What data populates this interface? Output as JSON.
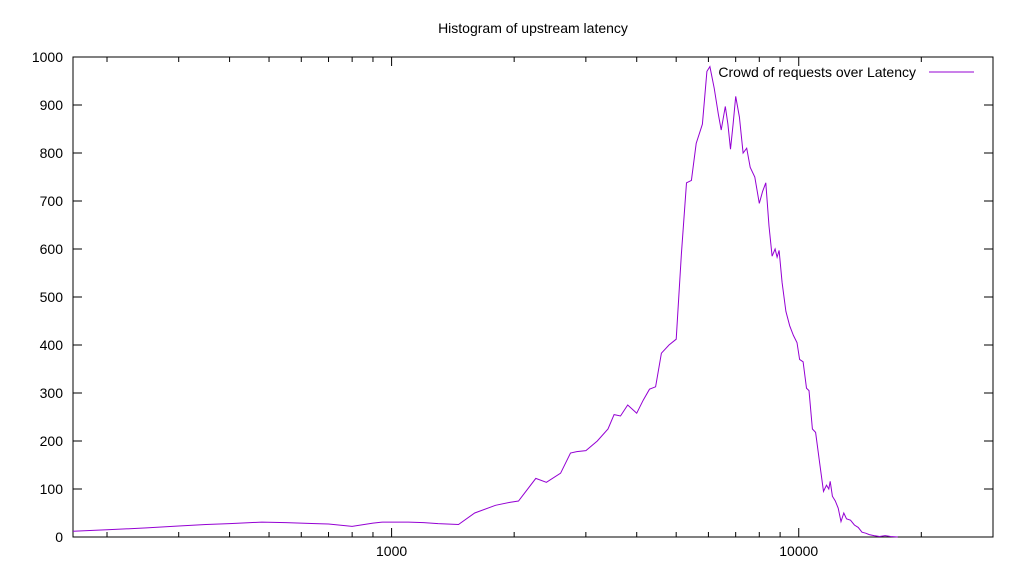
{
  "chart_data": {
    "type": "line",
    "title": "Histogram of upstream latency",
    "xlabel": "",
    "ylabel": "",
    "x_scale": "log",
    "xlim": [
      165,
      30000
    ],
    "ylim": [
      0,
      1000
    ],
    "x_ticks_major": [
      1000,
      10000
    ],
    "x_tick_labels": [
      "1000",
      "10000"
    ],
    "y_ticks": [
      0,
      100,
      200,
      300,
      400,
      500,
      600,
      700,
      800,
      900,
      1000
    ],
    "y_tick_labels": [
      "0",
      "100",
      "200",
      "300",
      "400",
      "500",
      "600",
      "700",
      "800",
      "900",
      "1000"
    ],
    "grid": false,
    "legend_position": "top-right",
    "series": [
      {
        "name": "Crowd of requests over Latency",
        "color": "#9400D3",
        "points": [
          [
            165,
            12
          ],
          [
            200,
            15
          ],
          [
            250,
            19
          ],
          [
            300,
            23
          ],
          [
            350,
            26
          ],
          [
            400,
            28
          ],
          [
            450,
            30
          ],
          [
            480,
            31
          ],
          [
            550,
            30
          ],
          [
            650,
            28
          ],
          [
            700,
            27
          ],
          [
            800,
            22
          ],
          [
            900,
            29
          ],
          [
            950,
            31
          ],
          [
            1000,
            31
          ],
          [
            1100,
            31
          ],
          [
            1200,
            30
          ],
          [
            1300,
            28
          ],
          [
            1460,
            26
          ],
          [
            1600,
            50
          ],
          [
            1800,
            66
          ],
          [
            1950,
            72
          ],
          [
            2050,
            75
          ],
          [
            2260,
            122
          ],
          [
            2400,
            114
          ],
          [
            2600,
            133
          ],
          [
            2750,
            175
          ],
          [
            2850,
            178
          ],
          [
            3000,
            180
          ],
          [
            3200,
            200
          ],
          [
            3400,
            225
          ],
          [
            3520,
            255
          ],
          [
            3650,
            252
          ],
          [
            3800,
            275
          ],
          [
            4000,
            258
          ],
          [
            4150,
            285
          ],
          [
            4300,
            308
          ],
          [
            4450,
            313
          ],
          [
            4600,
            383
          ],
          [
            4800,
            400
          ],
          [
            5000,
            412
          ],
          [
            5150,
            590
          ],
          [
            5300,
            738
          ],
          [
            5450,
            743
          ],
          [
            5600,
            820
          ],
          [
            5800,
            860
          ],
          [
            5950,
            970
          ],
          [
            6050,
            980
          ],
          [
            6200,
            935
          ],
          [
            6350,
            880
          ],
          [
            6450,
            848
          ],
          [
            6600,
            897
          ],
          [
            6700,
            860
          ],
          [
            6800,
            808
          ],
          [
            6900,
            860
          ],
          [
            7000,
            918
          ],
          [
            7150,
            875
          ],
          [
            7300,
            800
          ],
          [
            7450,
            810
          ],
          [
            7600,
            770
          ],
          [
            7800,
            750
          ],
          [
            8000,
            695
          ],
          [
            8150,
            720
          ],
          [
            8300,
            738
          ],
          [
            8450,
            648
          ],
          [
            8600,
            585
          ],
          [
            8750,
            600
          ],
          [
            8850,
            583
          ],
          [
            8950,
            597
          ],
          [
            9100,
            530
          ],
          [
            9300,
            470
          ],
          [
            9500,
            440
          ],
          [
            9700,
            420
          ],
          [
            9900,
            405
          ],
          [
            10050,
            370
          ],
          [
            10250,
            365
          ],
          [
            10450,
            310
          ],
          [
            10600,
            305
          ],
          [
            10800,
            225
          ],
          [
            11000,
            218
          ],
          [
            11250,
            155
          ],
          [
            11500,
            95
          ],
          [
            11700,
            108
          ],
          [
            11850,
            100
          ],
          [
            11950,
            116
          ],
          [
            12100,
            85
          ],
          [
            12300,
            75
          ],
          [
            12500,
            60
          ],
          [
            12700,
            32
          ],
          [
            12900,
            50
          ],
          [
            13100,
            38
          ],
          [
            13400,
            35
          ],
          [
            13700,
            25
          ],
          [
            14000,
            20
          ],
          [
            14300,
            10
          ],
          [
            14600,
            8
          ],
          [
            14900,
            5
          ],
          [
            15300,
            3
          ],
          [
            15800,
            1
          ],
          [
            16300,
            3
          ],
          [
            16800,
            1
          ],
          [
            17500,
            0
          ]
        ]
      }
    ]
  }
}
